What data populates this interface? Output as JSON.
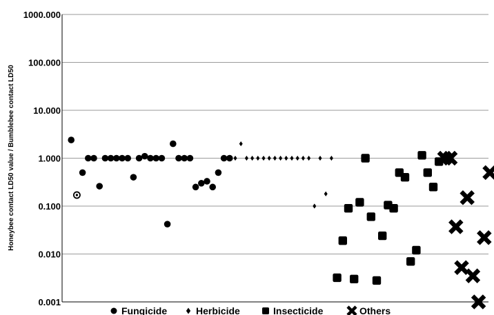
{
  "chart_data": {
    "type": "scatter",
    "title": "",
    "xlabel": "",
    "ylabel": "Honeybee contact LD50 value / Bumblebee contact LD50",
    "yscale": "log",
    "ylim": [
      0.001,
      1000
    ],
    "yticks": [
      "0.001",
      "0.010",
      "0.100",
      "1.000",
      "10.000",
      "100.000",
      "1000.000"
    ],
    "grid": "horizontal",
    "legend_position": "bottom",
    "series": [
      {
        "name": "Fungicide",
        "marker": "circle",
        "color": "#000000",
        "points": [
          {
            "x": 1,
            "y": 2.4
          },
          {
            "x": 2,
            "y": 0.17,
            "style": "hollow"
          },
          {
            "x": 3,
            "y": 0.5
          },
          {
            "x": 4,
            "y": 1.0
          },
          {
            "x": 5,
            "y": 1.0
          },
          {
            "x": 6,
            "y": 0.26
          },
          {
            "x": 7,
            "y": 1.0
          },
          {
            "x": 8,
            "y": 1.0
          },
          {
            "x": 9,
            "y": 1.0
          },
          {
            "x": 10,
            "y": 1.0
          },
          {
            "x": 11,
            "y": 1.0
          },
          {
            "x": 12,
            "y": 0.4
          },
          {
            "x": 13,
            "y": 1.0
          },
          {
            "x": 14,
            "y": 1.1
          },
          {
            "x": 15,
            "y": 1.0
          },
          {
            "x": 16,
            "y": 1.0
          },
          {
            "x": 17,
            "y": 1.0
          },
          {
            "x": 18,
            "y": 0.042
          },
          {
            "x": 19,
            "y": 2.0
          },
          {
            "x": 20,
            "y": 1.0
          },
          {
            "x": 21,
            "y": 1.0
          },
          {
            "x": 22,
            "y": 1.0
          },
          {
            "x": 23,
            "y": 0.25
          },
          {
            "x": 24,
            "y": 0.3
          },
          {
            "x": 25,
            "y": 0.33
          },
          {
            "x": 26,
            "y": 0.25
          },
          {
            "x": 27,
            "y": 0.5
          },
          {
            "x": 28,
            "y": 1.0
          },
          {
            "x": 29,
            "y": 1.0
          }
        ]
      },
      {
        "name": "Herbicide",
        "marker": "diamond",
        "color": "#000000",
        "points": [
          {
            "x": 30,
            "y": 1.0
          },
          {
            "x": 31,
            "y": 2.0
          },
          {
            "x": 32,
            "y": 1.0
          },
          {
            "x": 33,
            "y": 1.0
          },
          {
            "x": 34,
            "y": 1.0
          },
          {
            "x": 35,
            "y": 1.0
          },
          {
            "x": 36,
            "y": 1.0
          },
          {
            "x": 37,
            "y": 1.0
          },
          {
            "x": 38,
            "y": 1.0
          },
          {
            "x": 39,
            "y": 1.0
          },
          {
            "x": 40,
            "y": 1.0
          },
          {
            "x": 41,
            "y": 1.0
          },
          {
            "x": 42,
            "y": 1.0
          },
          {
            "x": 43,
            "y": 1.0
          },
          {
            "x": 44,
            "y": 0.1
          },
          {
            "x": 45,
            "y": 1.0
          },
          {
            "x": 46,
            "y": 0.18
          },
          {
            "x": 47,
            "y": 1.0
          }
        ]
      },
      {
        "name": "Insecticide",
        "marker": "square",
        "color": "#000000",
        "points": [
          {
            "x": 48,
            "y": 0.0032
          },
          {
            "x": 49,
            "y": 0.019
          },
          {
            "x": 50,
            "y": 0.09
          },
          {
            "x": 51,
            "y": 0.003
          },
          {
            "x": 52,
            "y": 0.12
          },
          {
            "x": 53,
            "y": 1.0
          },
          {
            "x": 54,
            "y": 0.06
          },
          {
            "x": 55,
            "y": 0.0028
          },
          {
            "x": 56,
            "y": 0.024
          },
          {
            "x": 57,
            "y": 0.105
          },
          {
            "x": 58,
            "y": 0.09
          },
          {
            "x": 59,
            "y": 0.5
          },
          {
            "x": 60,
            "y": 0.4
          },
          {
            "x": 61,
            "y": 0.007
          },
          {
            "x": 62,
            "y": 0.012
          },
          {
            "x": 63,
            "y": 1.15
          },
          {
            "x": 64,
            "y": 0.5
          },
          {
            "x": 65,
            "y": 0.25
          },
          {
            "x": 66,
            "y": 0.85
          }
        ]
      },
      {
        "name": "Others",
        "marker": "x",
        "color": "#000000",
        "points": [
          {
            "x": 67,
            "y": 1.0
          },
          {
            "x": 68,
            "y": 1.0
          },
          {
            "x": 69,
            "y": 0.037
          },
          {
            "x": 70,
            "y": 0.0052
          },
          {
            "x": 71,
            "y": 0.15
          },
          {
            "x": 72,
            "y": 0.0035
          },
          {
            "x": 73,
            "y": 0.001
          },
          {
            "x": 74,
            "y": 0.022
          },
          {
            "x": 75,
            "y": 0.5
          }
        ]
      }
    ]
  }
}
